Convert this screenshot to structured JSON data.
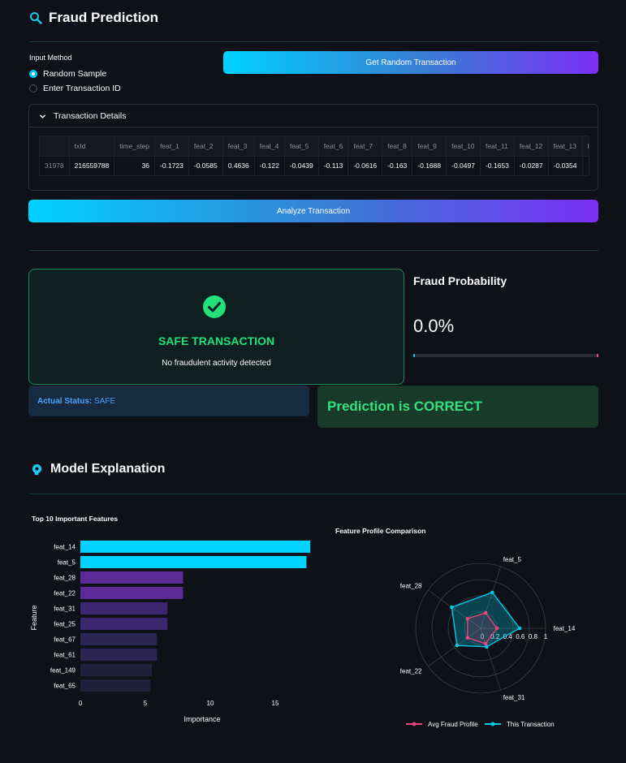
{
  "header": {
    "title": "Fraud Prediction"
  },
  "input_method": {
    "label": "Input Method",
    "options": [
      {
        "label": "Random Sample",
        "selected": true
      },
      {
        "label": "Enter Transaction ID",
        "selected": false
      }
    ]
  },
  "buttons": {
    "random": "Get Random Transaction",
    "analyze": "Analyze Transaction"
  },
  "details": {
    "title": "Transaction Details",
    "columns": [
      "",
      "txId",
      "time_step",
      "feat_1",
      "feat_2",
      "feat_3",
      "feat_4",
      "feat_5",
      "feat_6",
      "feat_7",
      "feat_8",
      "feat_9",
      "feat_10",
      "feat_11",
      "feat_12",
      "feat_13",
      "fea"
    ],
    "row": [
      "31978",
      "216559788",
      "36",
      "-0.1723",
      "-0.0585",
      "0.4636",
      "-0.122",
      "-0.0439",
      "-0.113",
      "-0.0616",
      "-0.163",
      "-0.1688",
      "-0.0497",
      "-0.1653",
      "-0.0287",
      "-0.0354",
      "-0"
    ]
  },
  "result": {
    "status_title": "SAFE TRANSACTION",
    "status_sub": "No fraudulent activity detected",
    "prob_title": "Fraud Probability",
    "prob_value": "0.0%",
    "prob_fraction": 0.0,
    "actual_label": "Actual Status:",
    "actual_value": "SAFE",
    "correct_text": "Prediction is CORRECT"
  },
  "explanation": {
    "title": "Model Explanation"
  },
  "colors": {
    "accent_cyan": "#00d2ff",
    "accent_purple": "#7b2ff7",
    "safe_green": "#22e07a",
    "fraud_pink": "#e8457a"
  },
  "chart_data": [
    {
      "type": "bar",
      "orientation": "horizontal",
      "title": "Top 10 Important Features",
      "xlabel": "Importance",
      "ylabel": "Feature",
      "categories": [
        "feat_14",
        "feat_5",
        "feat_28",
        "feat_22",
        "feat_31",
        "feat_25",
        "feat_67",
        "feat_61",
        "feat_149",
        "feat_65"
      ],
      "values": [
        17.7,
        17.4,
        7.9,
        7.9,
        6.7,
        6.7,
        5.9,
        5.9,
        5.5,
        5.4
      ],
      "xlim": [
        0,
        18
      ],
      "xticks": [
        0,
        5,
        10,
        15
      ],
      "bar_colors": [
        "#00d2ff",
        "#00d2ff",
        "#5b2a96",
        "#5b2a96",
        "#3b2670",
        "#3b2670",
        "#2c2452",
        "#2c2452",
        "#221f3a",
        "#221f3a"
      ]
    },
    {
      "type": "radar",
      "title": "Feature Profile Comparison",
      "axes": [
        "feat_14",
        "feat_5",
        "feat_28",
        "feat_22",
        "feat_31"
      ],
      "radial_ticks": [
        0,
        0.2,
        0.4,
        0.6,
        0.8,
        1
      ],
      "series": [
        {
          "name": "Avg Fraud Profile",
          "color": "#e8457a",
          "values": [
            0.25,
            0.25,
            0.25,
            0.25,
            0.25
          ]
        },
        {
          "name": "This Transaction",
          "color": "#00c8e8",
          "values": [
            0.6,
            0.58,
            0.55,
            0.45,
            0.3
          ]
        }
      ]
    }
  ]
}
